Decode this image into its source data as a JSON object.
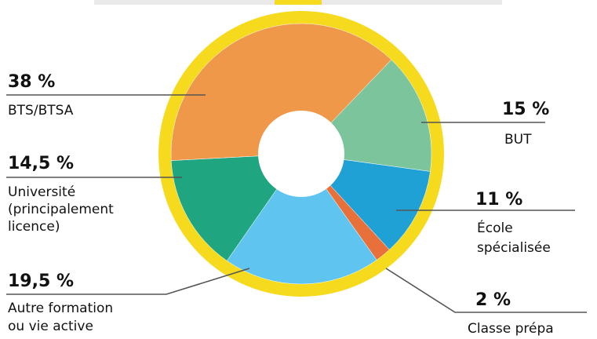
{
  "chart_data": {
    "type": "pie",
    "variant": "donut",
    "ring_color": "#F5DA1E",
    "center_color": "#FFFFFF",
    "slices": [
      {
        "label": "BTS/BTSA",
        "value": 38,
        "value_label": "38 %",
        "color": "#F0984A"
      },
      {
        "label": "BUT",
        "value": 15,
        "value_label": "15 %",
        "color": "#7CC49B"
      },
      {
        "label": "École spécialisée",
        "value": 11,
        "value_label": "11 %",
        "color": "#1FA1D6"
      },
      {
        "label": "Classe prépa",
        "value": 2,
        "value_label": "2 %",
        "color": "#E8703A"
      },
      {
        "label": "Autre formation ou vie active",
        "value": 19.5,
        "value_label": "19,5 %",
        "color": "#5FC4F0"
      },
      {
        "label": "Université (principalement licence)",
        "value": 14.5,
        "value_label": "14,5 %",
        "color": "#1FA57F"
      }
    ]
  },
  "labels": {
    "btsa_pct": "38 %",
    "btsa_name": "BTS/BTSA",
    "univ_pct": "14,5 %",
    "univ_line1": "Université",
    "univ_line2": "(principalement",
    "univ_line3": "licence)",
    "autre_pct": "19,5 %",
    "autre_line1": "Autre formation",
    "autre_line2": "ou vie active",
    "but_pct": "15 %",
    "but_name": "BUT",
    "ecole_pct": "11 %",
    "ecole_line1": "École",
    "ecole_line2": "spécialisée",
    "prepa_pct": "2 %",
    "prepa_name": "Classe prépa"
  }
}
